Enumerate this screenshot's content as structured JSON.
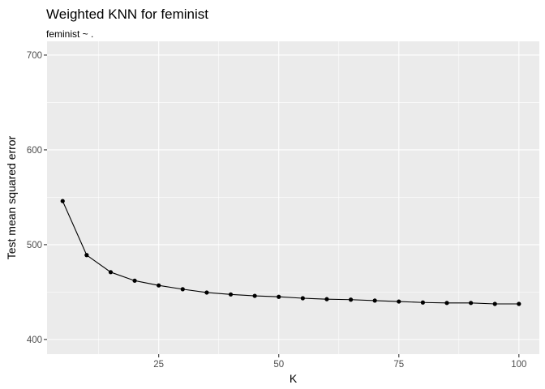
{
  "chart_data": {
    "type": "line",
    "title": "Weighted KNN for feminist",
    "subtitle": "feminist ~ .",
    "xlabel": "K",
    "ylabel": "Test mean squared error",
    "x_ticks": [
      25,
      50,
      75,
      100
    ],
    "y_ticks": [
      400,
      500,
      600,
      700
    ],
    "xlim": [
      1.75,
      104.25
    ],
    "ylim": [
      384.5,
      714.5
    ],
    "grid": true,
    "legend": "none",
    "colors": {
      "panel": "#ebebeb",
      "grid": "#ffffff",
      "line": "#000000",
      "tick_text": "#4d4d4d"
    },
    "series": [
      {
        "x": [
          5,
          10,
          15,
          20,
          25,
          30,
          35,
          40,
          45,
          50,
          55,
          60,
          65,
          70,
          75,
          80,
          85,
          90,
          95,
          100
        ],
        "y": [
          546,
          489,
          471,
          462,
          457,
          453,
          449.5,
          447.5,
          446,
          445,
          443.5,
          442.5,
          442,
          441,
          440,
          439,
          438.5,
          438.5,
          437.5,
          437.5
        ]
      }
    ]
  }
}
